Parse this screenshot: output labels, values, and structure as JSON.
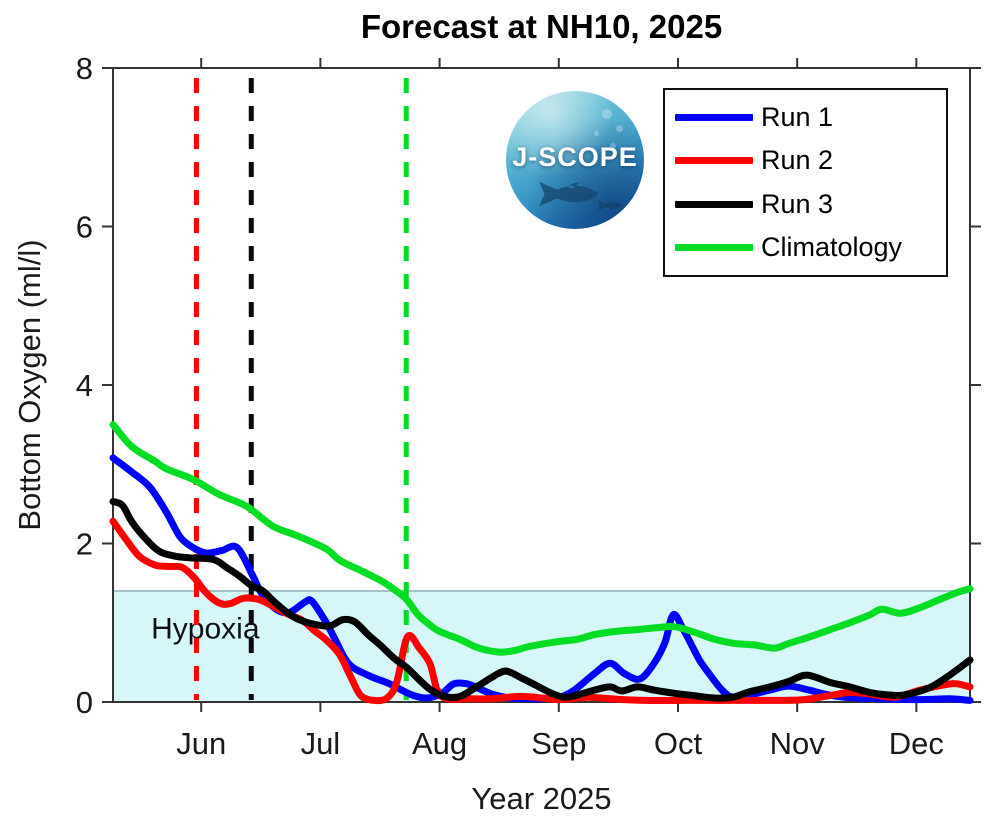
{
  "logo": {
    "text": "J-SCOPE"
  },
  "hypoxia": {
    "label": "Hypoxia",
    "band_color": "#d7f6f8",
    "edge_color": "#a5c3c6"
  },
  "axis_color": "#333333",
  "legend": {
    "position": "top-right"
  },
  "chart_data": {
    "type": "line",
    "title": "Forecast at NH10, 2025",
    "xlabel": "Year 2025",
    "ylabel": "Bottom Oxygen (ml/l)",
    "xlim": [
      5.26,
      12.45
    ],
    "ylim": [
      0,
      8
    ],
    "grid": false,
    "legend_position": "top-right",
    "x_ticks": [
      {
        "m": 6,
        "label": "Jun"
      },
      {
        "m": 7,
        "label": "Jul"
      },
      {
        "m": 8,
        "label": "Aug"
      },
      {
        "m": 9,
        "label": "Sep"
      },
      {
        "m": 10,
        "label": "Oct"
      },
      {
        "m": 11,
        "label": "Nov"
      },
      {
        "m": 12,
        "label": "Dec"
      }
    ],
    "y_ticks": [
      0,
      2,
      4,
      6,
      8
    ],
    "hypoxia_threshold_mll": 1.4,
    "annotations": {
      "hypoxia_label": {
        "text": "Hypoxia",
        "x": 5.58,
        "y": 0.93
      }
    },
    "vlines": [
      {
        "x": 5.96,
        "color": "#ff0000",
        "style": "dashed"
      },
      {
        "x": 6.42,
        "color": "#07070f",
        "style": "dashed"
      },
      {
        "x": 7.72,
        "color": "#00dd22",
        "style": "dashed"
      }
    ],
    "series": [
      {
        "name": "Run 1",
        "color": "#0000ff",
        "points": [
          [
            5.26,
            3.08
          ],
          [
            5.42,
            2.9
          ],
          [
            5.57,
            2.71
          ],
          [
            5.71,
            2.39
          ],
          [
            5.82,
            2.09
          ],
          [
            5.93,
            1.95
          ],
          [
            6.04,
            1.88
          ],
          [
            6.17,
            1.91
          ],
          [
            6.3,
            1.95
          ],
          [
            6.43,
            1.6
          ],
          [
            6.51,
            1.36
          ],
          [
            6.63,
            1.17
          ],
          [
            6.74,
            1.13
          ],
          [
            6.87,
            1.26
          ],
          [
            6.93,
            1.27
          ],
          [
            7.05,
            1.0
          ],
          [
            7.12,
            0.8
          ],
          [
            7.24,
            0.48
          ],
          [
            7.41,
            0.33
          ],
          [
            7.58,
            0.23
          ],
          [
            7.75,
            0.1
          ],
          [
            7.89,
            0.05
          ],
          [
            8.02,
            0.11
          ],
          [
            8.12,
            0.23
          ],
          [
            8.23,
            0.23
          ],
          [
            8.33,
            0.17
          ],
          [
            8.44,
            0.1
          ],
          [
            8.59,
            0.05
          ],
          [
            8.75,
            0.04
          ],
          [
            8.88,
            0.04
          ],
          [
            9.01,
            0.06
          ],
          [
            9.13,
            0.15
          ],
          [
            9.3,
            0.36
          ],
          [
            9.43,
            0.49
          ],
          [
            9.55,
            0.36
          ],
          [
            9.68,
            0.29
          ],
          [
            9.8,
            0.49
          ],
          [
            9.89,
            0.75
          ],
          [
            9.96,
            1.1
          ],
          [
            10.04,
            0.93
          ],
          [
            10.11,
            0.73
          ],
          [
            10.18,
            0.53
          ],
          [
            10.26,
            0.36
          ],
          [
            10.37,
            0.15
          ],
          [
            10.46,
            0.06
          ],
          [
            10.6,
            0.09
          ],
          [
            10.77,
            0.15
          ],
          [
            10.93,
            0.2
          ],
          [
            11.1,
            0.15
          ],
          [
            11.23,
            0.1
          ],
          [
            11.4,
            0.06
          ],
          [
            11.69,
            0.04
          ],
          [
            12.03,
            0.03
          ],
          [
            12.28,
            0.04
          ],
          [
            12.45,
            0.02
          ]
        ]
      },
      {
        "name": "Run 2",
        "color": "#ff0000",
        "points": [
          [
            5.26,
            2.28
          ],
          [
            5.37,
            2.05
          ],
          [
            5.48,
            1.84
          ],
          [
            5.61,
            1.73
          ],
          [
            5.73,
            1.71
          ],
          [
            5.84,
            1.7
          ],
          [
            5.94,
            1.57
          ],
          [
            6.04,
            1.38
          ],
          [
            6.15,
            1.25
          ],
          [
            6.24,
            1.24
          ],
          [
            6.36,
            1.31
          ],
          [
            6.49,
            1.29
          ],
          [
            6.61,
            1.2
          ],
          [
            6.74,
            1.1
          ],
          [
            6.85,
            1.03
          ],
          [
            6.95,
            0.9
          ],
          [
            7.05,
            0.78
          ],
          [
            7.16,
            0.6
          ],
          [
            7.26,
            0.3
          ],
          [
            7.34,
            0.08
          ],
          [
            7.45,
            0.02
          ],
          [
            7.56,
            0.05
          ],
          [
            7.64,
            0.25
          ],
          [
            7.73,
            0.82
          ],
          [
            7.83,
            0.68
          ],
          [
            7.92,
            0.48
          ],
          [
            7.98,
            0.15
          ],
          [
            8.06,
            0.04
          ],
          [
            8.25,
            0.04
          ],
          [
            8.44,
            0.04
          ],
          [
            8.65,
            0.07
          ],
          [
            8.8,
            0.06
          ],
          [
            9.01,
            0.03
          ],
          [
            9.24,
            0.06
          ],
          [
            9.44,
            0.04
          ],
          [
            9.72,
            0.02
          ],
          [
            10.1,
            0.02
          ],
          [
            10.52,
            0.02
          ],
          [
            10.85,
            0.02
          ],
          [
            11.06,
            0.03
          ],
          [
            11.27,
            0.08
          ],
          [
            11.44,
            0.12
          ],
          [
            11.62,
            0.1
          ],
          [
            11.82,
            0.06
          ],
          [
            12.03,
            0.15
          ],
          [
            12.25,
            0.22
          ],
          [
            12.34,
            0.23
          ],
          [
            12.45,
            0.19
          ]
        ]
      },
      {
        "name": "Run 3",
        "color": "#000000",
        "points": [
          [
            5.26,
            2.53
          ],
          [
            5.34,
            2.48
          ],
          [
            5.42,
            2.27
          ],
          [
            5.54,
            2.05
          ],
          [
            5.65,
            1.9
          ],
          [
            5.78,
            1.84
          ],
          [
            5.9,
            1.82
          ],
          [
            6.1,
            1.8
          ],
          [
            6.21,
            1.7
          ],
          [
            6.32,
            1.59
          ],
          [
            6.42,
            1.47
          ],
          [
            6.51,
            1.41
          ],
          [
            6.61,
            1.27
          ],
          [
            6.72,
            1.13
          ],
          [
            6.82,
            1.04
          ],
          [
            6.95,
            0.98
          ],
          [
            7.08,
            0.96
          ],
          [
            7.19,
            1.04
          ],
          [
            7.29,
            1.01
          ],
          [
            7.4,
            0.85
          ],
          [
            7.5,
            0.72
          ],
          [
            7.62,
            0.55
          ],
          [
            7.72,
            0.44
          ],
          [
            7.83,
            0.28
          ],
          [
            7.92,
            0.16
          ],
          [
            8.04,
            0.07
          ],
          [
            8.17,
            0.07
          ],
          [
            8.32,
            0.2
          ],
          [
            8.46,
            0.33
          ],
          [
            8.56,
            0.39
          ],
          [
            8.69,
            0.3
          ],
          [
            8.81,
            0.21
          ],
          [
            8.94,
            0.11
          ],
          [
            9.05,
            0.06
          ],
          [
            9.16,
            0.09
          ],
          [
            9.3,
            0.15
          ],
          [
            9.43,
            0.19
          ],
          [
            9.53,
            0.14
          ],
          [
            9.66,
            0.19
          ],
          [
            9.8,
            0.15
          ],
          [
            9.97,
            0.11
          ],
          [
            10.14,
            0.08
          ],
          [
            10.31,
            0.05
          ],
          [
            10.46,
            0.06
          ],
          [
            10.6,
            0.13
          ],
          [
            10.77,
            0.19
          ],
          [
            10.93,
            0.26
          ],
          [
            11.08,
            0.34
          ],
          [
            11.27,
            0.25
          ],
          [
            11.44,
            0.19
          ],
          [
            11.61,
            0.12
          ],
          [
            11.76,
            0.09
          ],
          [
            11.9,
            0.09
          ],
          [
            12.11,
            0.18
          ],
          [
            12.28,
            0.34
          ],
          [
            12.45,
            0.53
          ]
        ]
      },
      {
        "name": "Climatology",
        "color": "#00dd22",
        "points": [
          [
            5.26,
            3.5
          ],
          [
            5.42,
            3.22
          ],
          [
            5.61,
            3.04
          ],
          [
            5.71,
            2.94
          ],
          [
            5.93,
            2.81
          ],
          [
            6.15,
            2.62
          ],
          [
            6.38,
            2.47
          ],
          [
            6.6,
            2.22
          ],
          [
            6.82,
            2.09
          ],
          [
            7.05,
            1.93
          ],
          [
            7.16,
            1.79
          ],
          [
            7.35,
            1.65
          ],
          [
            7.52,
            1.52
          ],
          [
            7.62,
            1.42
          ],
          [
            7.72,
            1.3
          ],
          [
            7.82,
            1.1
          ],
          [
            7.92,
            0.97
          ],
          [
            8.0,
            0.89
          ],
          [
            8.17,
            0.79
          ],
          [
            8.33,
            0.68
          ],
          [
            8.5,
            0.63
          ],
          [
            8.63,
            0.65
          ],
          [
            8.75,
            0.7
          ],
          [
            8.98,
            0.76
          ],
          [
            9.15,
            0.79
          ],
          [
            9.3,
            0.85
          ],
          [
            9.47,
            0.89
          ],
          [
            9.63,
            0.91
          ],
          [
            9.84,
            0.94
          ],
          [
            9.97,
            0.95
          ],
          [
            10.14,
            0.88
          ],
          [
            10.31,
            0.79
          ],
          [
            10.47,
            0.74
          ],
          [
            10.64,
            0.72
          ],
          [
            10.81,
            0.68
          ],
          [
            10.93,
            0.74
          ],
          [
            11.1,
            0.82
          ],
          [
            11.27,
            0.91
          ],
          [
            11.44,
            1.0
          ],
          [
            11.61,
            1.1
          ],
          [
            11.71,
            1.17
          ],
          [
            11.87,
            1.12
          ],
          [
            12.03,
            1.19
          ],
          [
            12.19,
            1.29
          ],
          [
            12.34,
            1.38
          ],
          [
            12.45,
            1.43
          ]
        ]
      }
    ]
  }
}
